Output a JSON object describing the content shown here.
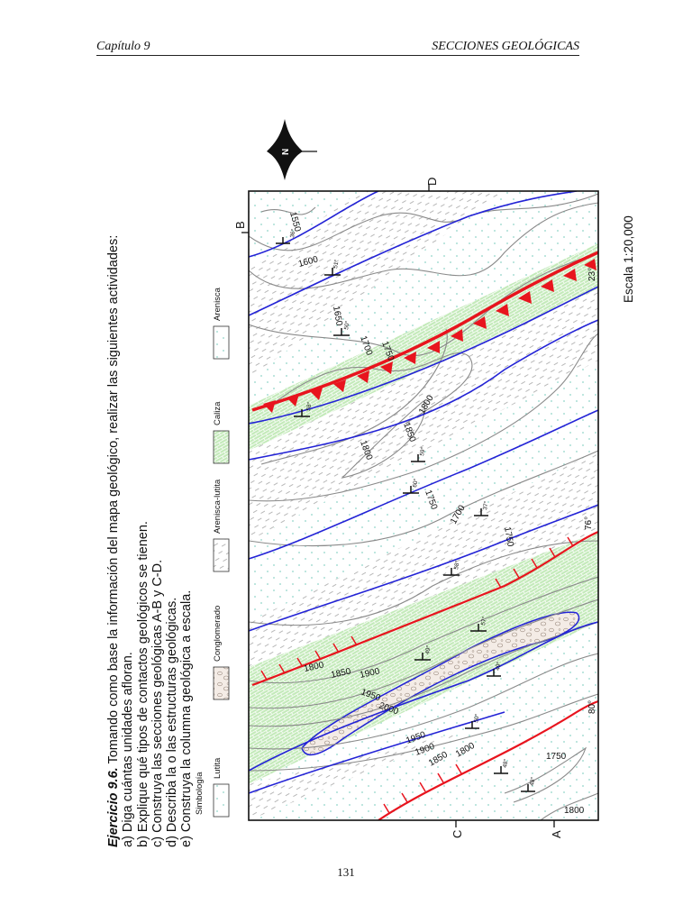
{
  "header": {
    "chapter": "Capítulo 9",
    "section": "SECCIONES GEOLÓGICAS"
  },
  "exercise": {
    "lead": "Ejercicio 9.6.",
    "intro": "Tomando como base la información del mapa geológico, realizar las siguientes actividades:",
    "items": [
      "a) Diga cuántas unidades afloran.",
      "b) Explique qué tipos de contactos geológicos se tienen.",
      "c) Construya las secciones geológicas A-B y C-D.",
      "d) Describa la o las estructuras geológicas.",
      "e) Construya la columna geológica a escala."
    ]
  },
  "legend": {
    "title": "Simbología",
    "items": [
      {
        "label": "Lutita",
        "pattern": "shale"
      },
      {
        "label": "Conglomerado",
        "pattern": "conglomerate"
      },
      {
        "label": "Arenisca-lutita",
        "pattern": "sandstone-shale"
      },
      {
        "label": "Caliza",
        "pattern": "limestone"
      },
      {
        "label": "Arenisca",
        "pattern": "sandstone"
      }
    ]
  },
  "map": {
    "scale": "Escala 1:20,000",
    "north_symbol": "N",
    "section_ends": {
      "A": "A",
      "B": "B",
      "C": "C",
      "D": "D"
    },
    "contour_labels": [
      "1550",
      "1600",
      "1650",
      "1700",
      "1750",
      "1800",
      "1850",
      "1800",
      "1750",
      "1700",
      "1750",
      "1800",
      "1850",
      "1900",
      "1950",
      "2000",
      "1950",
      "1900",
      "1850",
      "1800",
      "1750",
      "1800"
    ],
    "dip_labels": [
      "36°",
      "51°",
      "50°",
      "58°",
      "59°",
      "60°",
      "37°",
      "58°",
      "57°",
      "49°",
      "49°",
      "50°",
      "48°",
      "48°"
    ],
    "fault_dips": [
      "23°",
      "76°",
      "80°"
    ],
    "colors": {
      "contact": "#2323d6",
      "fault": "#e8141e",
      "contour": "#8a8a8a",
      "limestone": "#bfe8b4",
      "sandstone_dot": "#8fd4c8",
      "conglomerate": "#f1e7e0"
    }
  },
  "page_number": "131"
}
